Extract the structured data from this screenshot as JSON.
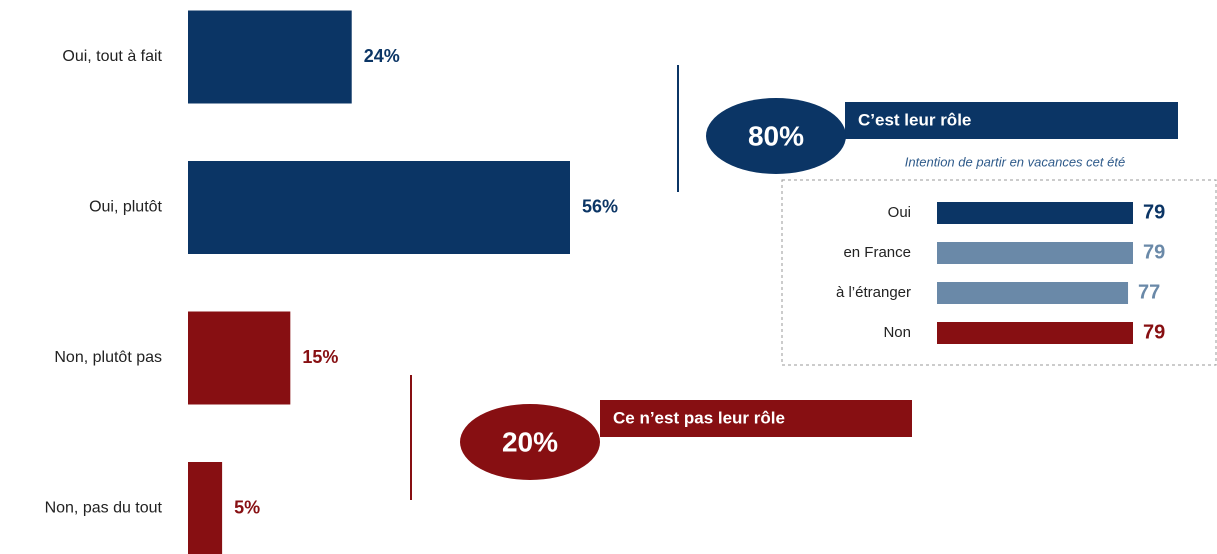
{
  "chart_data": [
    {
      "type": "bar",
      "categories": [
        "Oui, tout à fait",
        "Oui, plutôt",
        "Non, plutôt pas",
        "Non, pas du tout"
      ],
      "values": [
        24,
        56,
        15,
        5
      ],
      "value_labels": [
        "24%",
        "56%",
        "15%",
        "5%"
      ],
      "colors": [
        "#0b3565",
        "#0b3565",
        "#870f12",
        "#870f12"
      ],
      "annotations": [
        {
          "value": 80,
          "value_label": "80%",
          "text": "C’est leur rôle",
          "color": "#0b3565"
        },
        {
          "value": 20,
          "value_label": "20%",
          "text": "Ce n’est pas leur rôle",
          "color": "#870f12"
        }
      ]
    },
    {
      "type": "bar",
      "title": "Intention de partir en vacances cet été",
      "categories": [
        "Oui",
        "en France",
        "à l’étranger",
        "Non"
      ],
      "values": [
        79,
        79,
        77,
        79
      ],
      "colors": [
        "#0b3565",
        "#6a89a8",
        "#6a89a8",
        "#870f12"
      ]
    }
  ]
}
